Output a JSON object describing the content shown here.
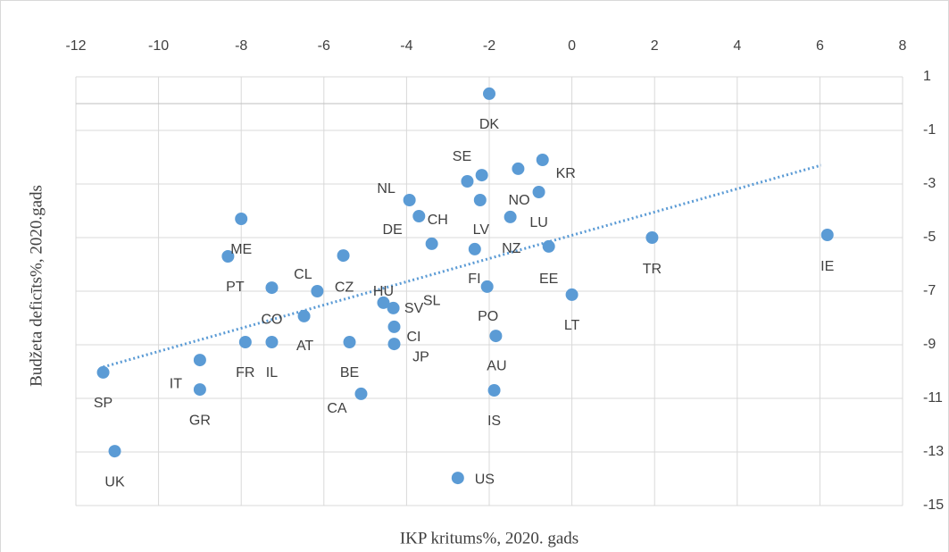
{
  "chart_data": {
    "type": "scatter",
    "x_label": "IKP kritums%, 2020. gads",
    "y_label": "Budžeta deficīts%,  2020.gads",
    "xlim": [
      -12,
      8
    ],
    "xticks": [
      -12,
      -10,
      -8,
      -6,
      -4,
      -2,
      0,
      2,
      4,
      6,
      8
    ],
    "ylim": [
      -15,
      1
    ],
    "yticks": [
      1,
      -1,
      -3,
      -5,
      -7,
      -9,
      -11,
      -13,
      -15
    ],
    "grid": true,
    "series": [
      {
        "color": "#5b9bd5",
        "x": [
          -2.0,
          -2.53,
          -2.18,
          -1.3,
          -0.71,
          -0.8,
          -3.93,
          -3.7,
          -2.22,
          -1.49,
          -3.39,
          -2.35,
          -0.56,
          1.94,
          6.18,
          -8.32,
          -8.0,
          -7.26,
          -6.16,
          -5.53,
          -4.56,
          -4.32,
          -6.48,
          -4.3,
          -4.3,
          -7.9,
          -7.26,
          -5.38,
          -9.0,
          -9.0,
          -11.34,
          -11.06,
          -5.1,
          -2.05,
          -1.84,
          -1.88,
          -2.76,
          0.0
        ],
        "values": [
          0.37,
          -2.9,
          -2.67,
          -2.43,
          -2.1,
          -3.3,
          -3.6,
          -4.2,
          -3.6,
          -4.23,
          -5.23,
          -5.43,
          -5.33,
          -5.0,
          -4.9,
          -5.7,
          -4.3,
          -6.87,
          -7.0,
          -5.67,
          -7.43,
          -7.63,
          -7.93,
          -8.33,
          -8.97,
          -8.9,
          -8.9,
          -8.9,
          -9.57,
          -10.67,
          -10.03,
          -12.97,
          -10.83,
          -6.83,
          -8.67,
          -10.7,
          -13.97,
          -7.13
        ],
        "labels": [
          "DK",
          "SE",
          "SL",
          "FI",
          "KR",
          "NO",
          "NL",
          "CH",
          "LV",
          "LU",
          "DE",
          "NZ",
          "EE",
          "TR",
          "IE",
          "PT",
          "ME",
          "CO",
          "CL",
          "CZ",
          "HU",
          "SV",
          "AT",
          "CI",
          "JP",
          "FR",
          "IL",
          "BE",
          "IT",
          "GR",
          "SP",
          "UK",
          "CA",
          "PO",
          "AU",
          "IS",
          "US",
          "LT"
        ]
      }
    ],
    "trendline": {
      "x": [
        -11.34,
        6.03
      ],
      "values": [
        -9.83,
        -2.3
      ]
    }
  }
}
